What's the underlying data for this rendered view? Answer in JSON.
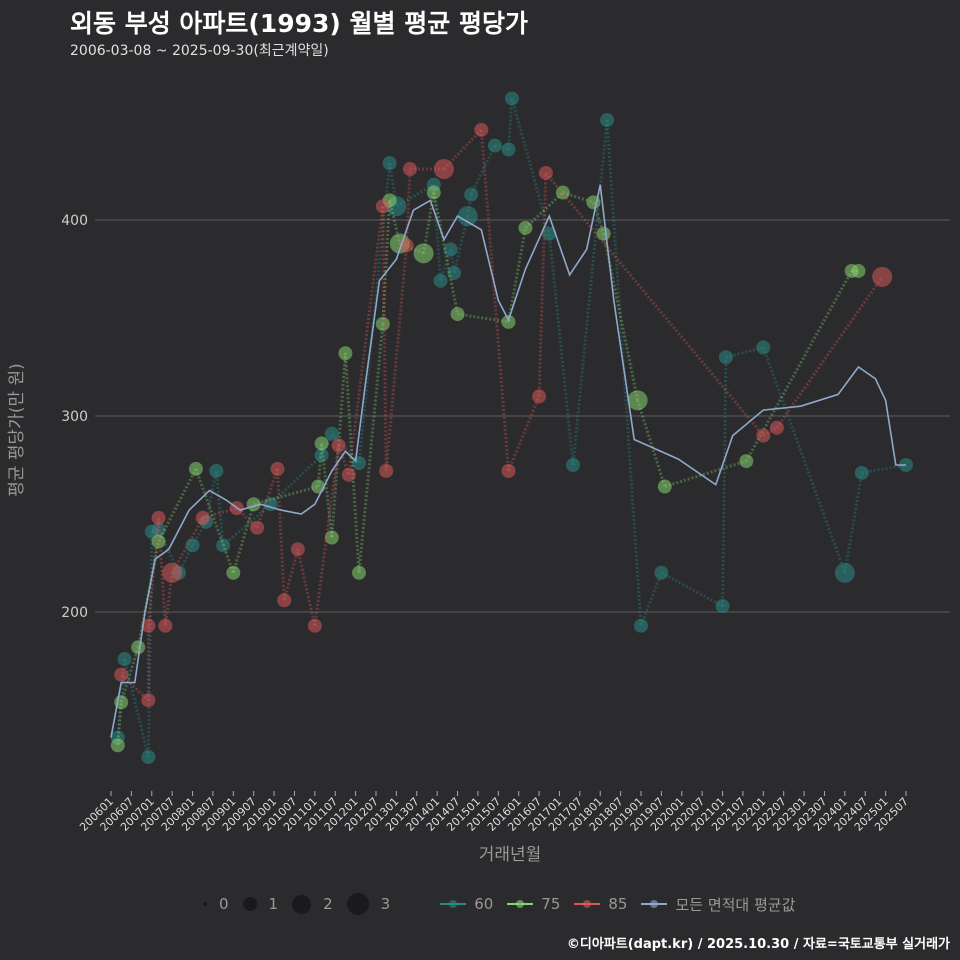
{
  "header": {
    "title": "외동 부성 아파트(1993) 월별 평균 평당가",
    "subtitle": "2006-03-08 ~ 2025-09-30(최근계약일)"
  },
  "caption": "©디아파트(dapt.kr) / 2025.10.30 / 자료=국토교통부 실거래가",
  "chart_data": {
    "type": "scatter",
    "title": "외동 부성 아파트(1993) 월별 평균 평당가",
    "xlabel": "거래년월",
    "ylabel": "평균 평당가(만 원)",
    "x_unit": "months since 2006-01",
    "xlim": [
      0,
      234
    ],
    "ylim": [
      110,
      470
    ],
    "y_ticks": [
      200,
      300,
      400
    ],
    "x_ticks": [
      "200601",
      "200607",
      "200701",
      "200707",
      "200801",
      "200807",
      "200901",
      "200907",
      "201001",
      "201007",
      "201101",
      "201107",
      "201201",
      "201207",
      "201301",
      "201307",
      "201401",
      "201407",
      "201501",
      "201507",
      "201601",
      "201607",
      "201701",
      "201707",
      "201801",
      "201807",
      "201901",
      "201907",
      "202001",
      "202007",
      "202101",
      "202107",
      "202201",
      "202207",
      "202301",
      "202307",
      "202401",
      "202407",
      "202501",
      "202507"
    ],
    "size_legend": {
      "labels": [
        "0",
        "1",
        "2",
        "3"
      ]
    },
    "series": [
      {
        "name": "60",
        "color": "#2a8a86",
        "points": [
          [
            2,
            136,
            2
          ],
          [
            4,
            176,
            2
          ],
          [
            11,
            126,
            2
          ],
          [
            12,
            241,
            2
          ],
          [
            14,
            242,
            2
          ],
          [
            20,
            220,
            2
          ],
          [
            24,
            234,
            2
          ],
          [
            28,
            246,
            2
          ],
          [
            31,
            272,
            2
          ],
          [
            33,
            234,
            2
          ],
          [
            47,
            255,
            2
          ],
          [
            62,
            280,
            2
          ],
          [
            65,
            291,
            2
          ],
          [
            73,
            276,
            2
          ],
          [
            82,
            429,
            2
          ],
          [
            84,
            407,
            3
          ],
          [
            95,
            418,
            2
          ],
          [
            97,
            369,
            2
          ],
          [
            100,
            385,
            2
          ],
          [
            101,
            373,
            2
          ],
          [
            105,
            402,
            3
          ],
          [
            106,
            413,
            2
          ],
          [
            113,
            438,
            2
          ],
          [
            117,
            436,
            2
          ],
          [
            118,
            462,
            2
          ],
          [
            129,
            393,
            2
          ],
          [
            136,
            275,
            2
          ],
          [
            146,
            451,
            2
          ],
          [
            156,
            193,
            2
          ],
          [
            162,
            220,
            2
          ],
          [
            180,
            203,
            2
          ],
          [
            181,
            330,
            2
          ],
          [
            192,
            335,
            2
          ],
          [
            216,
            220,
            3
          ],
          [
            221,
            271,
            2
          ],
          [
            234,
            275,
            2
          ]
        ]
      },
      {
        "name": "75",
        "color": "#86d270",
        "points": [
          [
            2,
            132,
            2
          ],
          [
            3,
            154,
            2
          ],
          [
            8,
            182,
            2
          ],
          [
            14,
            236,
            2
          ],
          [
            25,
            273,
            2
          ],
          [
            36,
            220,
            2
          ],
          [
            42,
            255,
            2
          ],
          [
            61,
            264,
            2
          ],
          [
            62,
            286,
            2
          ],
          [
            65,
            238,
            2
          ],
          [
            69,
            332,
            2
          ],
          [
            73,
            220,
            2
          ],
          [
            80,
            347,
            2
          ],
          [
            82,
            410,
            2
          ],
          [
            85,
            388,
            3
          ],
          [
            92,
            383,
            3
          ],
          [
            95,
            414,
            2
          ],
          [
            102,
            352,
            2
          ],
          [
            117,
            348,
            2
          ],
          [
            122,
            396,
            2
          ],
          [
            133,
            414,
            2
          ],
          [
            142,
            409,
            2
          ],
          [
            145,
            393,
            2
          ],
          [
            155,
            308,
            3
          ],
          [
            163,
            264,
            2
          ],
          [
            187,
            277,
            2
          ],
          [
            218,
            374,
            2
          ],
          [
            220,
            374,
            2
          ]
        ]
      },
      {
        "name": "85",
        "color": "#d9585a",
        "points": [
          [
            3,
            168,
            2
          ],
          [
            11,
            155,
            2
          ],
          [
            11,
            193,
            2
          ],
          [
            14,
            248,
            2
          ],
          [
            16,
            193,
            2
          ],
          [
            18,
            220,
            3
          ],
          [
            27,
            248,
            2
          ],
          [
            37,
            253,
            2
          ],
          [
            43,
            243,
            2
          ],
          [
            49,
            273,
            2
          ],
          [
            51,
            206,
            2
          ],
          [
            55,
            232,
            2
          ],
          [
            60,
            193,
            2
          ],
          [
            67,
            285,
            2
          ],
          [
            70,
            270,
            2
          ],
          [
            80,
            407,
            2
          ],
          [
            81,
            272,
            2
          ],
          [
            87,
            387,
            2
          ],
          [
            88,
            426,
            2
          ],
          [
            98,
            426,
            3
          ],
          [
            109,
            446,
            2
          ],
          [
            117,
            272,
            2
          ],
          [
            126,
            310,
            2
          ],
          [
            128,
            424,
            2
          ],
          [
            192,
            290,
            2
          ],
          [
            196,
            294,
            2
          ],
          [
            227,
            371,
            3
          ]
        ]
      },
      {
        "name": "모든 면적대 평균값",
        "color": "#8fa9cc",
        "type": "line",
        "points": [
          [
            0,
            136
          ],
          [
            3,
            164
          ],
          [
            7,
            164
          ],
          [
            10,
            200
          ],
          [
            13,
            227
          ],
          [
            17,
            232
          ],
          [
            23,
            252
          ],
          [
            29,
            262
          ],
          [
            34,
            257
          ],
          [
            38,
            252
          ],
          [
            44,
            255
          ],
          [
            50,
            252
          ],
          [
            56,
            250
          ],
          [
            60,
            255
          ],
          [
            65,
            272
          ],
          [
            69,
            282
          ],
          [
            72,
            277
          ],
          [
            75,
            318
          ],
          [
            79,
            369
          ],
          [
            84,
            380
          ],
          [
            89,
            405
          ],
          [
            94,
            410
          ],
          [
            98,
            390
          ],
          [
            102,
            402
          ],
          [
            109,
            395
          ],
          [
            114,
            359
          ],
          [
            117,
            349
          ],
          [
            122,
            375
          ],
          [
            129,
            402
          ],
          [
            135,
            372
          ],
          [
            140,
            385
          ],
          [
            144,
            418
          ],
          [
            148,
            359
          ],
          [
            154,
            288
          ],
          [
            167,
            278
          ],
          [
            178,
            265
          ],
          [
            183,
            290
          ],
          [
            192,
            303
          ],
          [
            203,
            305
          ],
          [
            214,
            311
          ],
          [
            220,
            325
          ],
          [
            225,
            319
          ],
          [
            228,
            308
          ],
          [
            231,
            275
          ],
          [
            234,
            275
          ]
        ]
      }
    ],
    "legend_position": "bottom"
  }
}
